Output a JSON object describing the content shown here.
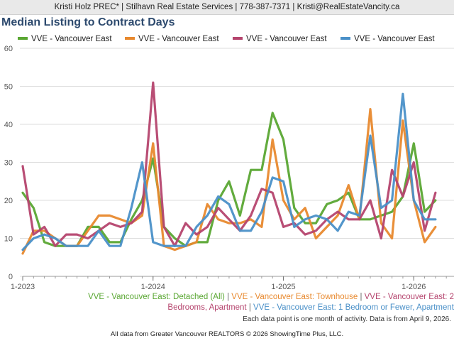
{
  "header": {
    "contact": "Kristi Holz PREC* | Stilhavn Real Estate Services | 778-387-7371 | Kristi@RealEstateVancity.ca"
  },
  "chart_data": {
    "type": "line",
    "title": "Median Listing to Contract Days",
    "xlabel": "",
    "ylabel": "",
    "ylim": [
      0,
      60
    ],
    "yticks": [
      "0",
      "10",
      "20",
      "30",
      "40",
      "50",
      "60"
    ],
    "xticks": [
      "1-2023",
      "1-2024",
      "1-2025",
      "1-2026"
    ],
    "xtick_index": [
      0,
      12,
      24,
      36
    ],
    "x": [
      "1-2023",
      "2-2023",
      "3-2023",
      "4-2023",
      "5-2023",
      "6-2023",
      "7-2023",
      "8-2023",
      "9-2023",
      "10-2023",
      "11-2023",
      "12-2023",
      "1-2024",
      "2-2024",
      "3-2024",
      "4-2024",
      "5-2024",
      "6-2024",
      "7-2024",
      "8-2024",
      "9-2024",
      "10-2024",
      "11-2024",
      "12-2024",
      "1-2025",
      "2-2025",
      "3-2025",
      "4-2025",
      "5-2025",
      "6-2025",
      "7-2025",
      "8-2025",
      "9-2025",
      "10-2025",
      "11-2025",
      "12-2025",
      "1-2026",
      "2-2026",
      "3-2026"
    ],
    "series": [
      {
        "name": "VVE - Vancouver East",
        "color": "#5aa733",
        "values": [
          22,
          18,
          9,
          8,
          8,
          8,
          13,
          13,
          9,
          9,
          15,
          20,
          31,
          13,
          10,
          8,
          9,
          9,
          20,
          25,
          16,
          28,
          28,
          43,
          36,
          18,
          14,
          14,
          19,
          20,
          22,
          15,
          15,
          16,
          17,
          21,
          35,
          17,
          20
        ]
      },
      {
        "name": "VVE - Vancouver East",
        "color": "#e8892e",
        "values": [
          6,
          12,
          12,
          10,
          8,
          8,
          12,
          16,
          16,
          15,
          14,
          16,
          35,
          8,
          7,
          8,
          9,
          19,
          15,
          14,
          14,
          15,
          13,
          36,
          20,
          15,
          18,
          10,
          13,
          16,
          24,
          15,
          44,
          14,
          10,
          41,
          20,
          9,
          13
        ]
      },
      {
        "name": "VVE - Vancouver East",
        "color": "#b5456e",
        "values": [
          29,
          11,
          13,
          8,
          11,
          11,
          10,
          12,
          14,
          13,
          14,
          17,
          51,
          13,
          8,
          14,
          11,
          13,
          18,
          15,
          12,
          16,
          23,
          22,
          13,
          14,
          11,
          12,
          15,
          17,
          15,
          15,
          20,
          10,
          28,
          21,
          30,
          12,
          22
        ]
      },
      {
        "name": "VVE - Vancouver East",
        "color": "#4a90c8",
        "values": [
          7,
          10,
          11,
          10,
          8,
          8,
          8,
          12,
          8,
          8,
          18,
          30,
          9,
          8,
          8,
          8,
          13,
          16,
          21,
          19,
          12,
          12,
          17,
          26,
          25,
          13,
          15,
          16,
          15,
          12,
          17,
          16,
          37,
          18,
          20,
          48,
          20,
          15,
          15
        ]
      }
    ],
    "bottom_legend": [
      {
        "text": "VVE - Vancouver East: Detached (All)",
        "color": "#5aa733"
      },
      {
        "text": "VVE - Vancouver East: Townhouse",
        "color": "#e8892e"
      },
      {
        "text": "VVE - Vancouver East: 2 Bedrooms, Apartment",
        "color": "#b5456e"
      },
      {
        "text": "VVE - Vancouver East: 1 Bedroom or Fewer, Apartment",
        "color": "#4a90c8"
      }
    ]
  },
  "footer": {
    "legend_line1_a": "VVE - Vancouver East: Detached (All)",
    "legend_line1_b": "VVE - Vancouver East: Townhouse",
    "legend_line1_c": "VVE - Vancouver East: 2",
    "legend_line2_a": "Bedrooms, Apartment",
    "legend_line2_b": "VVE - Vancouver East: 1 Bedroom or Fewer, Apartment",
    "separator": "|",
    "note": "Each data point is one month of activity. Data is from April 9, 2026.",
    "copyright": "All data from Greater Vancouver REALTORS © 2026 ShowingTime Plus, LLC."
  }
}
